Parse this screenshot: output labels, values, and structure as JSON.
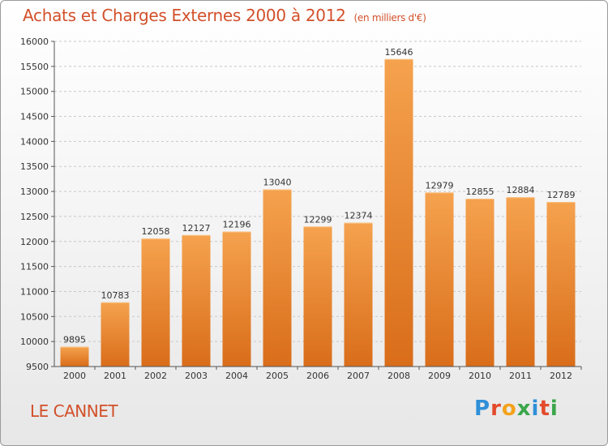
{
  "chart_data": {
    "type": "bar",
    "title": "Achats et Charges Externes 2000 à 2012",
    "subtitle": "(en milliers d'€)",
    "location": "LE CANNET",
    "categories": [
      "2000",
      "2001",
      "2002",
      "2003",
      "2004",
      "2005",
      "2006",
      "2007",
      "2008",
      "2009",
      "2010",
      "2011",
      "2012"
    ],
    "values": [
      9895,
      10783,
      12058,
      12127,
      12196,
      13040,
      12299,
      12374,
      15646,
      12979,
      12855,
      12884,
      12789
    ],
    "ylim": [
      9500,
      16000
    ],
    "yticks": [
      9500,
      10000,
      10500,
      11000,
      11500,
      12000,
      12500,
      13000,
      13500,
      14000,
      14500,
      15000,
      15500,
      16000
    ],
    "grid": "horizontal dashed",
    "bar_color_top": "#f5a24e",
    "bar_color_bottom": "#d96d1a",
    "text_color": "#d2502a"
  },
  "logo": {
    "text": "Proxiti",
    "letters": [
      {
        "ch": "P",
        "color": "#2f8fd8"
      },
      {
        "ch": "r",
        "color": "#e34a2b"
      },
      {
        "ch": "o",
        "color": "#f4a21c"
      },
      {
        "ch": "x",
        "color": "#3aa64a"
      },
      {
        "ch": "i",
        "color": "#2f8fd8"
      },
      {
        "ch": "t",
        "color": "#e34a2b"
      },
      {
        "ch": "i",
        "color": "#3aa64a"
      }
    ]
  }
}
